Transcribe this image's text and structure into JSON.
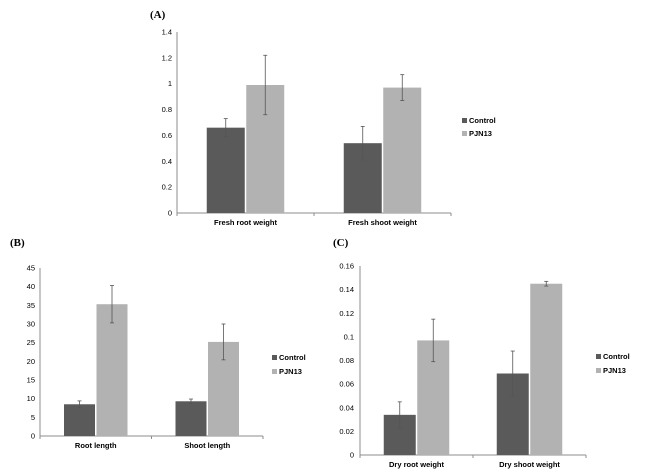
{
  "colors": {
    "control": "#5a5a5a",
    "treatment": "#b2b2b2"
  },
  "chart_data": [
    {
      "type": "bar",
      "panel": "(A)",
      "categories": [
        "Fresh root weight",
        "Fresh shoot weight"
      ],
      "series": [
        {
          "name": "Control",
          "values": [
            0.66,
            0.54
          ],
          "errors": [
            0.07,
            0.13
          ]
        },
        {
          "name": "PJN13",
          "values": [
            0.99,
            0.97
          ],
          "errors": [
            0.23,
            0.1
          ]
        }
      ],
      "ylim": [
        0,
        1.4
      ],
      "yticks": [
        "0",
        "0.2",
        "0.4",
        "0.6",
        "0.8",
        "1",
        "1.2",
        "1.4"
      ],
      "legend": "right"
    },
    {
      "type": "bar",
      "panel": "(B)",
      "categories": [
        "Root length",
        "Shoot length"
      ],
      "series": [
        {
          "name": "Control",
          "values": [
            8.5,
            9.3
          ],
          "errors": [
            0.9,
            0.6
          ]
        },
        {
          "name": "PJN13",
          "values": [
            35.3,
            25.2
          ],
          "errors": [
            5.0,
            4.8
          ]
        }
      ],
      "ylim": [
        0,
        45
      ],
      "yticks": [
        "0",
        "5",
        "10",
        "15",
        "20",
        "25",
        "30",
        "35",
        "40",
        "45"
      ],
      "legend": "right"
    },
    {
      "type": "bar",
      "panel": "(C)",
      "categories": [
        "Dry root weight",
        "Dry shoot weight"
      ],
      "series": [
        {
          "name": "Control",
          "values": [
            0.034,
            0.069
          ],
          "errors": [
            0.011,
            0.019
          ]
        },
        {
          "name": "PJN13",
          "values": [
            0.097,
            0.145
          ],
          "errors": [
            0.018,
            0.002
          ]
        }
      ],
      "ylim": [
        0,
        0.16
      ],
      "yticks": [
        "0",
        "0.02",
        "0.04",
        "0.06",
        "0.08",
        "0.1",
        "0.12",
        "0.14",
        "0.16"
      ],
      "legend": "right"
    }
  ]
}
